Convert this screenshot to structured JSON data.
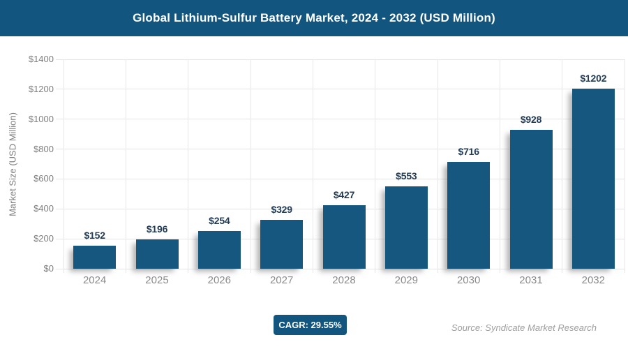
{
  "header": {
    "title": "Global Lithium-Sulfur Battery Market, 2024 - 2032 (USD Million)"
  },
  "chart_data": {
    "type": "bar",
    "title": "Global Lithium-Sulfur Battery Market, 2024 - 2032 (USD Million)",
    "categories": [
      "2024",
      "2025",
      "2026",
      "2027",
      "2028",
      "2029",
      "2030",
      "2031",
      "2032"
    ],
    "values": [
      152,
      196,
      254,
      329,
      427,
      553,
      716,
      928,
      1202
    ],
    "bar_labels": [
      "$152",
      "$196",
      "$254",
      "$329",
      "$427",
      "$553",
      "$716",
      "$928",
      "$1202"
    ],
    "xlabel": "",
    "ylabel": "Market Size (USD Million)",
    "ylim": [
      0,
      1400
    ],
    "ytick_step": 200,
    "ytick_labels": [
      "$0",
      "$200",
      "$400",
      "$600",
      "$800",
      "$1000",
      "$1200",
      "$1400"
    ],
    "grid": "horizontal and vertical, light gray",
    "legend": "none"
  },
  "footer": {
    "cagr_label": "CAGR: 29.55%",
    "source": "Source: Syndicate Market Research"
  },
  "colors": {
    "header_bg": "#12567F",
    "bar_fill": "#15577F",
    "badge_bg": "#12567F",
    "bar_label_text": "#233C55",
    "grid_line": "#e4e4e4",
    "axis_text": "#7e7e7e",
    "source_text": "#9e9e9e"
  }
}
